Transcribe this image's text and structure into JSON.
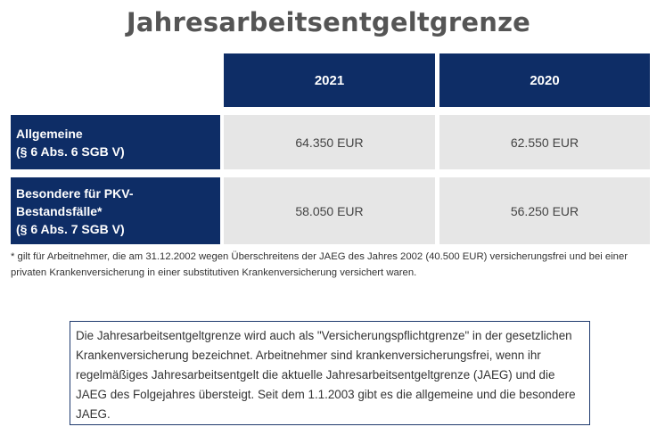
{
  "title": "Jahresarbeitsentgeltgrenze",
  "table": {
    "columns": [
      "2021",
      "2020"
    ],
    "rows": [
      {
        "label_lines": [
          "Allgemeine",
          "(§ 6 Abs. 6 SGB V)"
        ],
        "values": [
          "64.350 EUR",
          "62.550 EUR"
        ]
      },
      {
        "label_lines": [
          "Besondere für PKV-",
          "Bestandsfälle*",
          "(§ 6 Abs. 7 SGB V)"
        ],
        "values": [
          "58.050 EUR",
          "56.250 EUR"
        ]
      }
    ]
  },
  "footnote": "* gilt für Arbeitnehmer, die am 31.12.2002 wegen Überschreitens der JAEG des Jahres 2002 (40.500 EUR) versicherungsfrei und bei einer privaten Krankenversicherung in einer substitutiven Krankenversicherung versichert waren.",
  "info_text": "Die Jahresarbeitsentgeltgrenze wird auch als \"Versicherungspflichtgrenze\" in der gesetzlichen Krankenversicherung bezeichnet. Arbeitnehmer sind krankenversicherungsfrei, wenn ihr regelmäßiges Jahresarbeitsentgelt die aktuelle Jahresarbeitsentgeltgrenze (JAEG) und die JAEG des Folgejahres übersteigt. Seit dem 1.1.2003 gibt es die allgemeine und die besondere JAEG.",
  "colors": {
    "header_bg": "#0e2d66",
    "value_bg": "#e6e6e6",
    "title": "#555555"
  }
}
